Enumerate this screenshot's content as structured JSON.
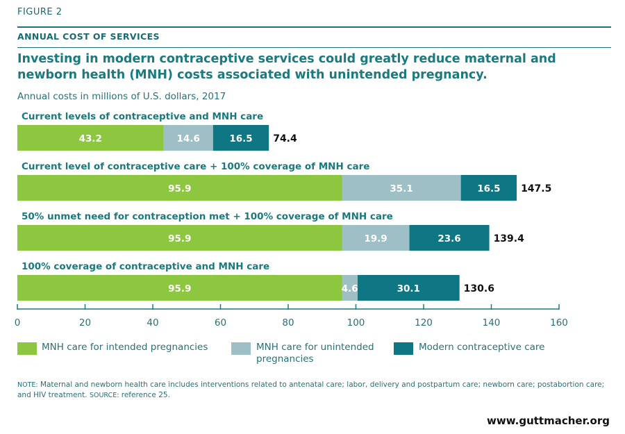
{
  "figure_label": "FIGURE 2",
  "section_title": "ANNUAL COST OF SERVICES",
  "headline": "Investing in modern contraceptive services could greatly reduce maternal and newborn health (MNH) costs associated with unintended pregnancy.",
  "subtitle": "Annual costs in millions of U.S. dollars, 2017",
  "colors": {
    "intended": "#8dc63f",
    "unintended": "#9fbfc6",
    "contraceptive": "#0f7683"
  },
  "chart_data": {
    "type": "bar",
    "orientation": "horizontal",
    "stacked": true,
    "categories": [
      "Current levels of contraceptive and MNH care",
      "Current level of contraceptive care + 100% coverage of MNH care",
      "50% unmet need for contraception met + 100% coverage of MNH care",
      "100% coverage of contraceptive and MNH care"
    ],
    "series": [
      {
        "name": "MNH care for intended pregnancies",
        "values": [
          43.2,
          95.9,
          95.9,
          95.9
        ]
      },
      {
        "name": "MNH care for unintended pregnancies",
        "values": [
          14.6,
          35.1,
          19.9,
          4.6
        ]
      },
      {
        "name": "Modern contraceptive care",
        "values": [
          16.5,
          16.5,
          23.6,
          30.1
        ]
      }
    ],
    "totals": [
      "74.4",
      "147.5",
      "139.4",
      "130.6"
    ],
    "value_labels": [
      [
        "43.2",
        "14.6",
        "16.5"
      ],
      [
        "95.9",
        "35.1",
        "16.5"
      ],
      [
        "95.9",
        "19.9",
        "23.6"
      ],
      [
        "95.9",
        "4.6",
        "30.1"
      ]
    ],
    "xlim": [
      0,
      160
    ],
    "xticks": [
      "0",
      "20",
      "40",
      "60",
      "80",
      "100",
      "120",
      "140",
      "160"
    ],
    "xlabel": "",
    "ylabel": "",
    "legend_position": "bottom",
    "grid": false
  },
  "legend": [
    {
      "label": "MNH care for intended pregnancies",
      "color": "#8dc63f"
    },
    {
      "label": "MNH care for unintended pregnancies",
      "color": "#9fbfc6"
    },
    {
      "label": "Modern contraceptive care",
      "color": "#0f7683"
    }
  ],
  "note_prefix": "NOTE:",
  "note_text": "Maternal and newborn health care includes interventions related to antenatal care; labor, delivery and postpartum care; newborn care; postabortion care; and HIV treatment.",
  "source_prefix": "SOURCE:",
  "source_text": "reference 25.",
  "url": "www.guttmacher.org"
}
